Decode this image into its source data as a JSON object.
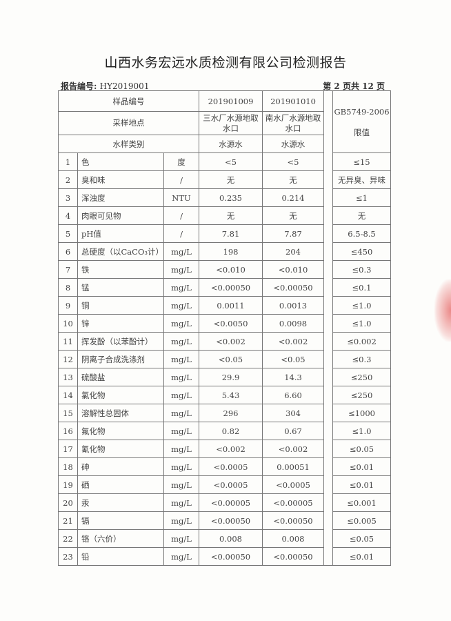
{
  "title": "山西水务宏远水质检测有限公司检测报告",
  "report_no_label": "报告编号:",
  "report_no": "HY2019001",
  "page_info": "第 2 页共 12 页",
  "header": {
    "sample_no_label": "样品编号",
    "location_label": "采样地点",
    "type_label": "水样类别",
    "samples": [
      {
        "no": "201901009",
        "location": "三水厂水源地取水口",
        "type": "水源水"
      },
      {
        "no": "201901010",
        "location": "南水厂水源地取水口",
        "type": "水源水"
      }
    ],
    "limit_label": "GB5749-2006 限值"
  },
  "rows": [
    {
      "n": "1",
      "item": "色",
      "unit": "度",
      "s1": "<5",
      "s2": "<5",
      "limit": "≤15"
    },
    {
      "n": "2",
      "item": "臭和味",
      "unit": "/",
      "s1": "无",
      "s2": "无",
      "limit": "无异臭、异味"
    },
    {
      "n": "3",
      "item": "浑浊度",
      "unit": "NTU",
      "s1": "0.235",
      "s2": "0.214",
      "limit": "≤1"
    },
    {
      "n": "4",
      "item": "肉眼可见物",
      "unit": "/",
      "s1": "无",
      "s2": "无",
      "limit": "无"
    },
    {
      "n": "5",
      "item": "pH值",
      "unit": "/",
      "s1": "7.81",
      "s2": "7.87",
      "limit": "6.5-8.5"
    },
    {
      "n": "6",
      "item": "总硬度（以CaCO₃计）",
      "unit": "mg/L",
      "s1": "198",
      "s2": "204",
      "limit": "≤450"
    },
    {
      "n": "7",
      "item": "铁",
      "unit": "mg/L",
      "s1": "<0.010",
      "s2": "<0.010",
      "limit": "≤0.3"
    },
    {
      "n": "8",
      "item": "锰",
      "unit": "mg/L",
      "s1": "<0.00050",
      "s2": "<0.00050",
      "limit": "≤0.1"
    },
    {
      "n": "9",
      "item": "铜",
      "unit": "mg/L",
      "s1": "0.0011",
      "s2": "0.0013",
      "limit": "≤1.0"
    },
    {
      "n": "10",
      "item": "锌",
      "unit": "mg/L",
      "s1": "<0.0050",
      "s2": "0.0098",
      "limit": "≤1.0"
    },
    {
      "n": "11",
      "item": "挥发酚（以苯酚计）",
      "unit": "mg/L",
      "s1": "<0.002",
      "s2": "<0.002",
      "limit": "≤0.002"
    },
    {
      "n": "12",
      "item": "阴离子合成洗涤剂",
      "unit": "mg/L",
      "s1": "<0.05",
      "s2": "<0.05",
      "limit": "≤0.3"
    },
    {
      "n": "13",
      "item": "硫酸盐",
      "unit": "mg/L",
      "s1": "29.9",
      "s2": "14.3",
      "limit": "≤250"
    },
    {
      "n": "14",
      "item": "氯化物",
      "unit": "mg/L",
      "s1": "5.43",
      "s2": "6.60",
      "limit": "≤250"
    },
    {
      "n": "15",
      "item": "溶解性总固体",
      "unit": "mg/L",
      "s1": "296",
      "s2": "304",
      "limit": "≤1000"
    },
    {
      "n": "16",
      "item": "氟化物",
      "unit": "mg/L",
      "s1": "0.82",
      "s2": "0.67",
      "limit": "≤1.0"
    },
    {
      "n": "17",
      "item": "氰化物",
      "unit": "mg/L",
      "s1": "<0.002",
      "s2": "<0.002",
      "limit": "≤0.05"
    },
    {
      "n": "18",
      "item": "砷",
      "unit": "mg/L",
      "s1": "<0.0005",
      "s2": "0.00051",
      "limit": "≤0.01"
    },
    {
      "n": "19",
      "item": "硒",
      "unit": "mg/L",
      "s1": "<0.0005",
      "s2": "<0.0005",
      "limit": "≤0.01"
    },
    {
      "n": "20",
      "item": "汞",
      "unit": "mg/L",
      "s1": "<0.00005",
      "s2": "<0.00005",
      "limit": "≤0.001"
    },
    {
      "n": "21",
      "item": "镉",
      "unit": "mg/L",
      "s1": "<0.00050",
      "s2": "<0.00050",
      "limit": "≤0.005"
    },
    {
      "n": "22",
      "item": "铬（六价）",
      "unit": "mg/L",
      "s1": "0.008",
      "s2": "0.008",
      "limit": "≤0.05"
    },
    {
      "n": "23",
      "item": "铅",
      "unit": "mg/L",
      "s1": "<0.00050",
      "s2": "<0.00050",
      "limit": "≤0.01"
    }
  ],
  "colors": {
    "stamp": "#dc2828",
    "rule": "#777777"
  }
}
